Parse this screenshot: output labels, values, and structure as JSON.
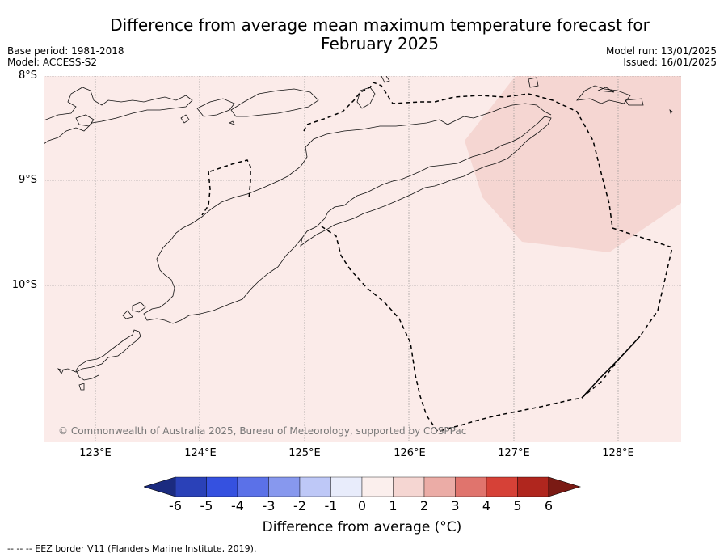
{
  "header": {
    "title_line1": "Difference from average mean maximum temperature forecast for",
    "title_line2": "February 2025",
    "base_period": "Base period: 1981-2018",
    "model": "Model: ACCESS-S2",
    "model_run": "Model run: 13/01/2025",
    "issued": "Issued: 16/01/2025"
  },
  "map": {
    "lat_labels": [
      "8°S",
      "9°S",
      "10°S"
    ],
    "lon_labels": [
      "123°E",
      "124°E",
      "125°E",
      "126°E",
      "127°E",
      "128°E"
    ],
    "copyright": "© Commonwealth of Australia 2025, Bureau of Meteorology, supported by COSPPac",
    "colors": {
      "background_class": "#fbebe9",
      "anomaly_1_2": "#f5d6d2",
      "grid": "#8a8a8a"
    }
  },
  "legend": {
    "ticks": [
      "-6",
      "-5",
      "-4",
      "-3",
      "-2",
      "-1",
      "0",
      "1",
      "2",
      "3",
      "4",
      "5",
      "6"
    ],
    "label": "Difference from average (°C)",
    "colors": [
      "#1b2b80",
      "#2a41b8",
      "#3551e0",
      "#5b71e8",
      "#8798ee",
      "#bec8f7",
      "#e8ecfb",
      "#fbefed",
      "#f5d6d2",
      "#ebaca6",
      "#e0746d",
      "#d64137",
      "#b0261e",
      "#7a1a14"
    ]
  },
  "footer": {
    "eez_note": "--  --  -- EEZ border V11 (Flanders Marine Institute, 2019)."
  }
}
